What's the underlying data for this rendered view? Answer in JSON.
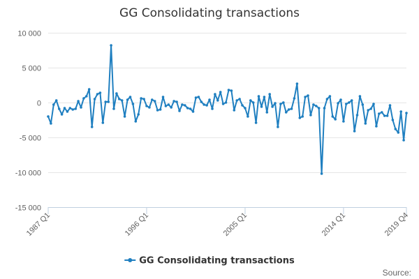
{
  "chart_data": {
    "type": "line",
    "title": "GG Consolidating transactions",
    "xlabel": "",
    "ylabel": "",
    "ylim": [
      -15000,
      10000
    ],
    "y_ticks": [
      10000,
      5000,
      0,
      -5000,
      -10000,
      -15000
    ],
    "y_tick_labels": [
      "10 000",
      "5 000",
      "0",
      "-5 000",
      "-10 000",
      "-15 000"
    ],
    "x_tick_labels": [
      "1987 Q1",
      "1996 Q1",
      "2005 Q1",
      "2014 Q1",
      "2019 Q4"
    ],
    "legend": "bottom-center",
    "credit": "Source:",
    "grid": true,
    "colors": {
      "series": "#1f7fc0",
      "grid": "#e6e6e6",
      "axis": "#c0d0e0"
    },
    "series": [
      {
        "name": "GG Consolidating transactions",
        "x": [
          "1987 Q1",
          "1987 Q2",
          "1987 Q3",
          "1987 Q4",
          "1988 Q1",
          "1988 Q2",
          "1988 Q3",
          "1988 Q4",
          "1989 Q1",
          "1989 Q2",
          "1989 Q3",
          "1989 Q4",
          "1990 Q1",
          "1990 Q2",
          "1990 Q3",
          "1990 Q4",
          "1991 Q1",
          "1991 Q2",
          "1991 Q3",
          "1991 Q4",
          "1992 Q1",
          "1992 Q2",
          "1992 Q3",
          "1992 Q4",
          "1993 Q1",
          "1993 Q2",
          "1993 Q3",
          "1993 Q4",
          "1994 Q1",
          "1994 Q2",
          "1994 Q3",
          "1994 Q4",
          "1995 Q1",
          "1995 Q2",
          "1995 Q3",
          "1995 Q4",
          "1996 Q1",
          "1996 Q2",
          "1996 Q3",
          "1996 Q4",
          "1997 Q1",
          "1997 Q2",
          "1997 Q3",
          "1997 Q4",
          "1998 Q1",
          "1998 Q2",
          "1998 Q3",
          "1998 Q4",
          "1999 Q1",
          "1999 Q2",
          "1999 Q3",
          "1999 Q4",
          "2000 Q1",
          "2000 Q2",
          "2000 Q3",
          "2000 Q4",
          "2001 Q1",
          "2001 Q2",
          "2001 Q3",
          "2001 Q4",
          "2002 Q1",
          "2002 Q2",
          "2002 Q3",
          "2002 Q4",
          "2003 Q1",
          "2003 Q2",
          "2003 Q3",
          "2003 Q4",
          "2004 Q1",
          "2004 Q2",
          "2004 Q3",
          "2004 Q4",
          "2005 Q1",
          "2005 Q2",
          "2005 Q3",
          "2005 Q4",
          "2006 Q1",
          "2006 Q2",
          "2006 Q3",
          "2006 Q4",
          "2007 Q1",
          "2007 Q2",
          "2007 Q3",
          "2007 Q4",
          "2008 Q1",
          "2008 Q2",
          "2008 Q3",
          "2008 Q4",
          "2009 Q1",
          "2009 Q2",
          "2009 Q3",
          "2009 Q4",
          "2010 Q1",
          "2010 Q2",
          "2010 Q3",
          "2010 Q4",
          "2011 Q1",
          "2011 Q2",
          "2011 Q3",
          "2011 Q4",
          "2012 Q1",
          "2012 Q2",
          "2012 Q3",
          "2012 Q4",
          "2013 Q1",
          "2013 Q2",
          "2013 Q3",
          "2013 Q4",
          "2014 Q1",
          "2014 Q2",
          "2014 Q3",
          "2014 Q4",
          "2015 Q1",
          "2015 Q2",
          "2015 Q3",
          "2015 Q4",
          "2016 Q1",
          "2016 Q2",
          "2016 Q3",
          "2016 Q4",
          "2017 Q1",
          "2017 Q2",
          "2017 Q3",
          "2017 Q4",
          "2018 Q1",
          "2018 Q2",
          "2018 Q3",
          "2018 Q4",
          "2019 Q1",
          "2019 Q2",
          "2019 Q3",
          "2019 Q4"
        ],
        "values": [
          -2000,
          -3000,
          -300,
          300,
          -900,
          -1700,
          -800,
          -1300,
          -800,
          -1000,
          -900,
          200,
          -700,
          600,
          900,
          1900,
          -3500,
          500,
          1200,
          1400,
          -2900,
          100,
          100,
          8200,
          -900,
          1300,
          500,
          300,
          -2000,
          400,
          800,
          -200,
          -2700,
          -1700,
          600,
          500,
          -500,
          -700,
          400,
          200,
          -1100,
          -1000,
          800,
          -500,
          -300,
          -700,
          200,
          100,
          -1200,
          -300,
          -400,
          -800,
          -900,
          -1300,
          700,
          800,
          100,
          -300,
          -400,
          400,
          -900,
          1200,
          300,
          1500,
          -200,
          0,
          1800,
          1700,
          -1100,
          300,
          500,
          -400,
          -800,
          -2000,
          300,
          0,
          -2900,
          900,
          -600,
          800,
          -1400,
          1200,
          -600,
          -100,
          -3500,
          -200,
          0,
          -1400,
          -1000,
          -900,
          600,
          2700,
          -2200,
          -2000,
          800,
          1000,
          -1800,
          -300,
          -500,
          -800,
          -10200,
          -800,
          500,
          900,
          -2000,
          -2400,
          -100,
          400,
          -2700,
          -200,
          0,
          300,
          -4100,
          -1800,
          900,
          -300,
          -3000,
          -1100,
          -900,
          -200,
          -3400,
          -1600,
          -1400,
          -1900,
          -1900,
          -400,
          -2500,
          -3800,
          -4300,
          -1300,
          -5400,
          -1500
        ]
      }
    ]
  }
}
